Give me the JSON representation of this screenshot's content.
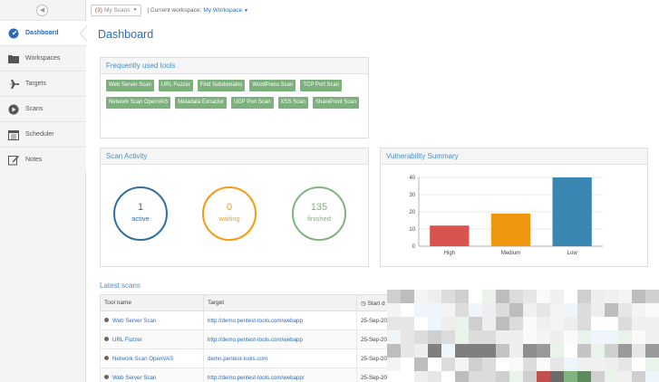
{
  "sidebar": {
    "items": [
      {
        "label": "Dashboard",
        "icon": "gauge-icon",
        "active": true
      },
      {
        "label": "Workspaces",
        "icon": "folder-icon"
      },
      {
        "label": "Targets",
        "icon": "plane-icon"
      },
      {
        "label": "Scans",
        "icon": "play-icon"
      },
      {
        "label": "Scheduler",
        "icon": "calendar-icon"
      },
      {
        "label": "Notes",
        "icon": "edit-icon"
      }
    ]
  },
  "topbar": {
    "scans_count": "(3)",
    "scans_label": "My Scans",
    "workspace_label": "| Current workspace:",
    "workspace_name": "My Workspace"
  },
  "page_title": "Dashboard",
  "tools_panel": {
    "title": "Frequently used tools",
    "tools": [
      "Web Server Scan",
      "URL Fuzzer",
      "Find Subdomains",
      "WordPress Scan",
      "TCP Port Scan",
      "Network Scan OpenVAS",
      "Metadata Extractor",
      "UDP Port Scan",
      "XSS Scan",
      "SharePoint Scan"
    ]
  },
  "activity_panel": {
    "title": "Scan Activity",
    "active": {
      "value": "1",
      "label": "active",
      "color": "#2f6f9f"
    },
    "waiting": {
      "value": "0",
      "label": "waiting",
      "color": "#f39c12"
    },
    "finished": {
      "value": "135",
      "label": "finished",
      "color": "#7fb37f"
    }
  },
  "vuln_panel": {
    "title": "Vulnerability Summary"
  },
  "chart_data": {
    "type": "bar",
    "title": "",
    "categories": [
      "High",
      "Medium",
      "Low"
    ],
    "values": [
      12,
      19,
      40
    ],
    "colors": [
      "#d9534f",
      "#f0960f",
      "#3a87b4"
    ],
    "yticks": [
      0,
      10,
      20,
      30,
      40
    ],
    "ylim": [
      0,
      40
    ],
    "grid": true
  },
  "latest_scans": {
    "title": "Latest scans",
    "columns": [
      "Tool name",
      "Target",
      "Start d"
    ],
    "rows": [
      {
        "tool": "Web Server Scan",
        "target": "http://demo.pentest-tools.com/webapp",
        "start": "25-Sep-20"
      },
      {
        "tool": "URL Fuzzer",
        "target": "http://demo.pentest-tools.com/webapp",
        "start": "25-Sep-20"
      },
      {
        "tool": "Network Scan OpenVAS",
        "target": "demo.pentest-tools.com",
        "start": "25-Sep-20"
      },
      {
        "tool": "Web Server Scan",
        "target": "http://demo.pentest-tools.com/webapp/",
        "start": "25-Sep-20"
      }
    ]
  }
}
